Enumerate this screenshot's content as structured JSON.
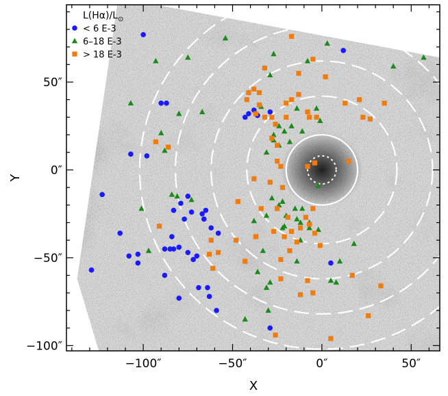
{
  "chart_data": {
    "type": "scatter",
    "title": "",
    "xlabel": "X",
    "ylabel": "Y",
    "xlim": [
      -143,
      66
    ],
    "ylim": [
      -103,
      94
    ],
    "x_ticks": [
      -100,
      -50,
      0,
      50
    ],
    "y_ticks": [
      -100,
      -50,
      0,
      50
    ],
    "x_tick_labels": [
      "−100″",
      "−50″",
      "0″",
      "50″"
    ],
    "y_tick_labels": [
      "−100″",
      "−50″",
      "0″",
      "50″"
    ],
    "legend": {
      "position": "top-left",
      "title_main": "L(H",
      "title_alpha": "α",
      "title_close": ")/L",
      "title_sub": "⊙"
    },
    "background_image": "grayscale H-alpha nebula image, rotated",
    "rings": {
      "center": [
        0,
        0
      ],
      "radii_arcsec": [
        8,
        20,
        42,
        62,
        82,
        102
      ],
      "inner_style": "dotted",
      "second_style": "solid",
      "outer_style": "dashed",
      "color": "#ffffff"
    },
    "series": [
      {
        "name": "<   6 E-3",
        "marker": "circle",
        "color": "#1a1aff",
        "points": [
          [
            -100,
            77
          ],
          [
            12,
            68
          ],
          [
            -107,
            9
          ],
          [
            -98,
            8
          ],
          [
            -90,
            38
          ],
          [
            -87,
            38
          ],
          [
            -38,
            34
          ],
          [
            -29,
            33
          ],
          [
            -41,
            32
          ],
          [
            -36,
            31
          ],
          [
            -43,
            30
          ],
          [
            -123,
            -14
          ],
          [
            -83,
            -23
          ],
          [
            -79,
            -19
          ],
          [
            -75,
            -15
          ],
          [
            -73,
            -24
          ],
          [
            -67,
            -25
          ],
          [
            -65,
            -23
          ],
          [
            -66,
            -28
          ],
          [
            -77,
            -28
          ],
          [
            -62,
            -33
          ],
          [
            -58,
            -36
          ],
          [
            -84,
            -38
          ],
          [
            -83,
            -45
          ],
          [
            -80,
            -44
          ],
          [
            -75,
            -47
          ],
          [
            -72,
            -51
          ],
          [
            -70,
            -49
          ],
          [
            -103,
            -48
          ],
          [
            -103,
            -53
          ],
          [
            -88,
            -45
          ],
          [
            -85,
            -45
          ],
          [
            -113,
            -36
          ],
          [
            -108,
            -49
          ],
          [
            -63,
            -72
          ],
          [
            -69,
            -67
          ],
          [
            -64,
            -67
          ],
          [
            -59,
            -80
          ],
          [
            -80,
            -73
          ],
          [
            -129,
            -57
          ],
          [
            -29,
            -90
          ],
          [
            -88,
            -60
          ],
          [
            5,
            -53
          ]
        ]
      },
      {
        "name": "6–18 E-3",
        "marker": "triangle",
        "color": "#1a8a1a",
        "points": [
          [
            -54,
            75
          ],
          [
            -93,
            62
          ],
          [
            -75,
            64
          ],
          [
            -27,
            66
          ],
          [
            3,
            72
          ],
          [
            40,
            59
          ],
          [
            57,
            64
          ],
          [
            -29,
            54
          ],
          [
            -8,
            62
          ],
          [
            -107,
            38
          ],
          [
            -80,
            32
          ],
          [
            -67,
            33
          ],
          [
            -34,
            36
          ],
          [
            -14,
            35
          ],
          [
            -90,
            21
          ],
          [
            -88,
            11
          ],
          [
            -24,
            25
          ],
          [
            -21,
            22
          ],
          [
            -27,
            20
          ],
          [
            -18,
            16
          ],
          [
            -31,
            10
          ],
          [
            -24,
            14
          ],
          [
            -3,
            35
          ],
          [
            -1,
            28
          ],
          [
            -11,
            22
          ],
          [
            -17,
            25
          ],
          [
            -27,
            17
          ],
          [
            -101,
            -22
          ],
          [
            -84,
            -14
          ],
          [
            -81,
            -15
          ],
          [
            -73,
            -17
          ],
          [
            -28,
            -16
          ],
          [
            -24,
            -20
          ],
          [
            -22,
            -18
          ],
          [
            -15,
            -22
          ],
          [
            -11,
            -22
          ],
          [
            -38,
            -29
          ],
          [
            -31,
            -26
          ],
          [
            -21,
            -32
          ],
          [
            -14,
            -28
          ],
          [
            -12,
            -30
          ],
          [
            -7,
            -30
          ],
          [
            -7,
            -33
          ],
          [
            -2,
            -34
          ],
          [
            -12,
            -40
          ],
          [
            -97,
            -46
          ],
          [
            -36,
            -58
          ],
          [
            -31,
            -67
          ],
          [
            -14,
            -52
          ],
          [
            -30,
            -80
          ],
          [
            5,
            -63
          ],
          [
            8,
            -64
          ],
          [
            10,
            -52
          ],
          [
            -29,
            -64
          ],
          [
            -43,
            -85
          ],
          [
            18,
            -42
          ],
          [
            -2,
            -9
          ],
          [
            -20,
            -26
          ],
          [
            -33,
            -46
          ],
          [
            -22,
            -33
          ]
        ]
      },
      {
        "name": "> 18 E-3",
        "marker": "square",
        "color": "#f07c10",
        "points": [
          [
            -17,
            76
          ],
          [
            -32,
            58
          ],
          [
            -13,
            55
          ],
          [
            -5,
            63
          ],
          [
            2,
            53
          ],
          [
            21,
            40
          ],
          [
            35,
            38
          ],
          [
            -41,
            44
          ],
          [
            -38,
            46
          ],
          [
            -35,
            44
          ],
          [
            -42,
            40
          ],
          [
            -35,
            37
          ],
          [
            -20,
            38
          ],
          [
            -17,
            40
          ],
          [
            -13,
            43
          ],
          [
            -8,
            33
          ],
          [
            13,
            38
          ],
          [
            -37,
            32
          ],
          [
            -32,
            30
          ],
          [
            -28,
            30
          ],
          [
            -26,
            26
          ],
          [
            -20,
            30
          ],
          [
            -7,
            30
          ],
          [
            -3,
            30
          ],
          [
            23,
            30
          ],
          [
            27,
            29
          ],
          [
            -93,
            16
          ],
          [
            -86,
            13
          ],
          [
            -28,
            18
          ],
          [
            -25,
            14
          ],
          [
            -25,
            5
          ],
          [
            -23,
            2
          ],
          [
            -8,
            2
          ],
          [
            -4,
            4
          ],
          [
            15,
            5
          ],
          [
            -38,
            -5
          ],
          [
            -29,
            -7
          ],
          [
            -22,
            -10
          ],
          [
            -5,
            -22
          ],
          [
            -47,
            -18
          ],
          [
            -34,
            -22
          ],
          [
            -25,
            -22
          ],
          [
            -19,
            -27
          ],
          [
            -9,
            -27
          ],
          [
            -4,
            -36
          ],
          [
            -1,
            -43
          ],
          [
            -37,
            -38
          ],
          [
            -27,
            -35
          ],
          [
            -21,
            -38
          ],
          [
            -17,
            -35
          ],
          [
            -12,
            -33
          ],
          [
            -7,
            -31
          ],
          [
            -48,
            -40
          ],
          [
            -43,
            -52
          ],
          [
            -23,
            -51
          ],
          [
            -18,
            -46
          ],
          [
            -14,
            -41
          ],
          [
            -91,
            -32
          ],
          [
            -62,
            -40
          ],
          [
            -58,
            -47
          ],
          [
            -61,
            -56
          ],
          [
            -63,
            -48
          ],
          [
            -23,
            -62
          ],
          [
            -12,
            -71
          ],
          [
            -5,
            -70
          ],
          [
            17,
            -60
          ],
          [
            33,
            -66
          ],
          [
            26,
            -83
          ],
          [
            -26,
            -94
          ],
          [
            5,
            -96
          ],
          [
            -8,
            -63
          ]
        ]
      }
    ]
  }
}
